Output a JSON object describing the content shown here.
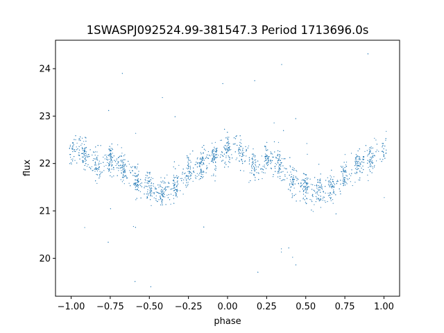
{
  "chart_data": {
    "type": "scatter",
    "title": "1SWASPJ092524.99-381547.3 Period 1713696.0s",
    "xlabel": "phase",
    "ylabel": "flux",
    "xlim": [
      -1.1,
      1.1
    ],
    "ylim": [
      19.2,
      24.6
    ],
    "x_ticks": [
      -1.0,
      -0.75,
      -0.5,
      -0.25,
      0.0,
      0.25,
      0.5,
      0.75,
      1.0
    ],
    "x_tick_labels": [
      "−1.00",
      "−0.75",
      "−0.50",
      "−0.25",
      "0.00",
      "0.25",
      "0.50",
      "0.75",
      "1.00"
    ],
    "y_ticks": [
      20,
      21,
      22,
      23,
      24
    ],
    "y_tick_labels": [
      "20",
      "21",
      "22",
      "23",
      "24"
    ],
    "grid": false,
    "marker_color": "#1f77b4",
    "series": [
      {
        "x": [
          -1.0,
          -0.95,
          -0.9,
          -0.85,
          -0.8,
          -0.75,
          -0.7,
          -0.65,
          -0.6,
          -0.55,
          -0.5,
          -0.45,
          -0.4,
          -0.35,
          -0.3,
          -0.25,
          -0.2,
          -0.15,
          -0.1,
          -0.05,
          0.0,
          0.05,
          0.1,
          0.15,
          0.2,
          0.25,
          0.3,
          0.35,
          0.4,
          0.45,
          0.5,
          0.55,
          0.6,
          0.65,
          0.7,
          0.75,
          0.8,
          0.85,
          0.9,
          0.95,
          1.0
        ],
        "y": [
          22.3,
          22.3,
          22.2,
          22.0,
          21.9,
          22.1,
          22.0,
          21.9,
          21.7,
          21.6,
          21.5,
          21.4,
          21.4,
          21.5,
          21.6,
          21.8,
          21.9,
          22.0,
          22.1,
          22.2,
          22.3,
          22.3,
          22.2,
          22.0,
          21.9,
          22.1,
          22.0,
          21.9,
          21.7,
          21.6,
          21.5,
          21.4,
          21.4,
          21.5,
          21.6,
          21.8,
          21.9,
          22.0,
          22.1,
          22.2,
          22.3
        ],
        "spread": 0.45
      }
    ]
  }
}
